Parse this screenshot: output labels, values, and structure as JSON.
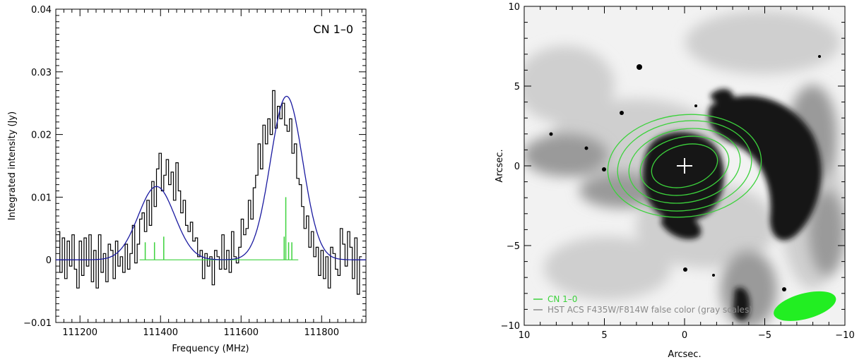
{
  "chart_data": [
    {
      "type": "line",
      "title": "CN 1–0",
      "xlabel": "Frequency (MHz)",
      "ylabel": "Integrated intensity (Jy)",
      "xlim": [
        111140,
        111910
      ],
      "ylim": [
        -0.01,
        0.04
      ],
      "x_ticks": [
        111200,
        111400,
        111600,
        111800
      ],
      "x_tick_labels": [
        "111200",
        "111400",
        "111600",
        "111800"
      ],
      "y_ticks": [
        -0.01,
        0,
        0.01,
        0.02,
        0.03,
        0.04
      ],
      "y_tick_labels": [
        "−0.01",
        "0",
        "0.01",
        "0.02",
        "0.03",
        "0.04"
      ],
      "series": [
        {
          "style": "histogram",
          "color": "#000000",
          "x": [
            111147,
            111153,
            111159,
            111165,
            111171,
            111177,
            111183,
            111189,
            111195,
            111201,
            111207,
            111213,
            111219,
            111225,
            111231,
            111237,
            111243,
            111249,
            111255,
            111261,
            111267,
            111273,
            111279,
            111285,
            111291,
            111297,
            111303,
            111309,
            111315,
            111321,
            111327,
            111333,
            111339,
            111345,
            111351,
            111357,
            111363,
            111369,
            111375,
            111381,
            111387,
            111393,
            111399,
            111405,
            111411,
            111417,
            111423,
            111429,
            111435,
            111441,
            111447,
            111453,
            111459,
            111465,
            111471,
            111477,
            111483,
            111489,
            111495,
            111501,
            111507,
            111513,
            111519,
            111525,
            111531,
            111537,
            111543,
            111549,
            111555,
            111561,
            111567,
            111573,
            111579,
            111585,
            111591,
            111597,
            111603,
            111609,
            111615,
            111621,
            111627,
            111633,
            111639,
            111645,
            111651,
            111657,
            111663,
            111669,
            111675,
            111681,
            111687,
            111693,
            111699,
            111705,
            111711,
            111717,
            111723,
            111729,
            111735,
            111741,
            111747,
            111753,
            111759,
            111765,
            111771,
            111777,
            111783,
            111789,
            111795,
            111801,
            111807,
            111813,
            111819,
            111825,
            111831,
            111837,
            111843,
            111849,
            111855,
            111861,
            111867,
            111873,
            111879,
            111885,
            111891,
            111897
          ],
          "values": [
            0.0045,
            -0.002,
            0.0035,
            -0.003,
            0.003,
            -0.001,
            0.004,
            -0.0015,
            -0.0045,
            0.003,
            -0.0025,
            0.0035,
            -0.001,
            0.004,
            -0.0035,
            0.0015,
            -0.0045,
            0.004,
            -0.002,
            0.001,
            -0.0035,
            0.0025,
            0.0015,
            -0.003,
            0.003,
            -0.001,
            0.0005,
            -0.002,
            0.0025,
            -0.0015,
            0.001,
            0.0055,
            -0.0005,
            0.0025,
            0.0065,
            0.0075,
            0.0045,
            0.0095,
            0.0055,
            0.0125,
            0.0085,
            0.0145,
            0.017,
            0.011,
            0.0135,
            0.016,
            0.012,
            0.014,
            0.0095,
            0.0155,
            0.011,
            0.0075,
            0.0095,
            0.0055,
            0.0045,
            0.006,
            0.003,
            0.0035,
            0.0005,
            0.0015,
            -0.003,
            0.001,
            -0.001,
            0.0005,
            -0.004,
            0.0015,
            0.0005,
            -0.0015,
            0.004,
            -0.0015,
            0.0015,
            -0.002,
            0.0045,
            0.0005,
            -0.0005,
            0.002,
            0.0065,
            0.004,
            0.005,
            0.0095,
            0.0065,
            0.0115,
            0.0135,
            0.0185,
            0.0145,
            0.0215,
            0.0185,
            0.0225,
            0.02,
            0.027,
            0.021,
            0.0245,
            0.0225,
            0.025,
            0.0215,
            0.0205,
            0.0225,
            0.017,
            0.0185,
            0.013,
            0.012,
            0.0085,
            0.005,
            0.007,
            0.002,
            0.0045,
            0.0005,
            0.002,
            -0.0025,
            0.0015,
            -0.003,
            0.0005,
            -0.0045,
            0.002,
            0.001,
            -0.0015,
            -0.0025,
            0.005,
            0.0025,
            -0.001,
            0.0045,
            0.002,
            -0.003,
            0.0035,
            -0.0055,
            0.0005
          ]
        },
        {
          "style": "gaussian-fit",
          "color": "#1a1aa0",
          "components": [
            {
              "center": 111390,
              "amplitude": 0.0117,
              "sigma": 45
            },
            {
              "center": 111713,
              "amplitude": 0.0261,
              "sigma": 40
            }
          ]
        },
        {
          "style": "hyperfine-sticks",
          "color": "#3cd23c",
          "baseline": 0,
          "baseline_range": [
            111348,
            111742
          ],
          "positions": [
            111362,
            111385,
            111408,
            111707,
            111711,
            111718,
            111726
          ],
          "heights": [
            0.0028,
            0.0028,
            0.0037,
            0.0037,
            0.01,
            0.0028,
            0.0028
          ]
        }
      ]
    },
    {
      "type": "heatmap",
      "title": "",
      "xlabel": "Arcsec.",
      "ylabel": "Arcsec.",
      "xlim": [
        10,
        -10
      ],
      "ylim": [
        -10,
        10
      ],
      "x_ticks": [
        10,
        5,
        0,
        -5,
        -10
      ],
      "x_tick_labels": [
        "10",
        "5",
        "0",
        "−5",
        "−10"
      ],
      "y_ticks": [
        -10,
        -5,
        0,
        5,
        10
      ],
      "y_tick_labels": [
        "−10",
        "−5",
        "0",
        "5",
        "10"
      ],
      "background": "HST ACS F435W/F814W false color (gray scales)",
      "contour_color": "#3cd23c",
      "contour_center": [
        0,
        0
      ],
      "contour_levels": [
        {
          "rx": 2.1,
          "ry": 1.3,
          "angle": -15
        },
        {
          "rx": 2.8,
          "ry": 1.8,
          "angle": -12
        },
        {
          "rx": 3.5,
          "ry": 2.3,
          "angle": -10
        },
        {
          "rx": 4.2,
          "ry": 2.8,
          "angle": -8
        },
        {
          "rx": 4.8,
          "ry": 3.2,
          "angle": -6
        }
      ],
      "marker": {
        "x": 0,
        "y": 0,
        "symbol": "cross",
        "color": "#ffffff"
      },
      "beam": {
        "x": -7.5,
        "y": -8.8,
        "major": 4.0,
        "minor": 1.6,
        "angle": 15,
        "color": "#22ee22"
      },
      "legend": [
        {
          "label": "CN 1–0",
          "color": "#3cd23c"
        },
        {
          "label": "HST ACS F435W/F814W false color (gray scales)",
          "color": "#8a8a8a"
        }
      ]
    }
  ]
}
